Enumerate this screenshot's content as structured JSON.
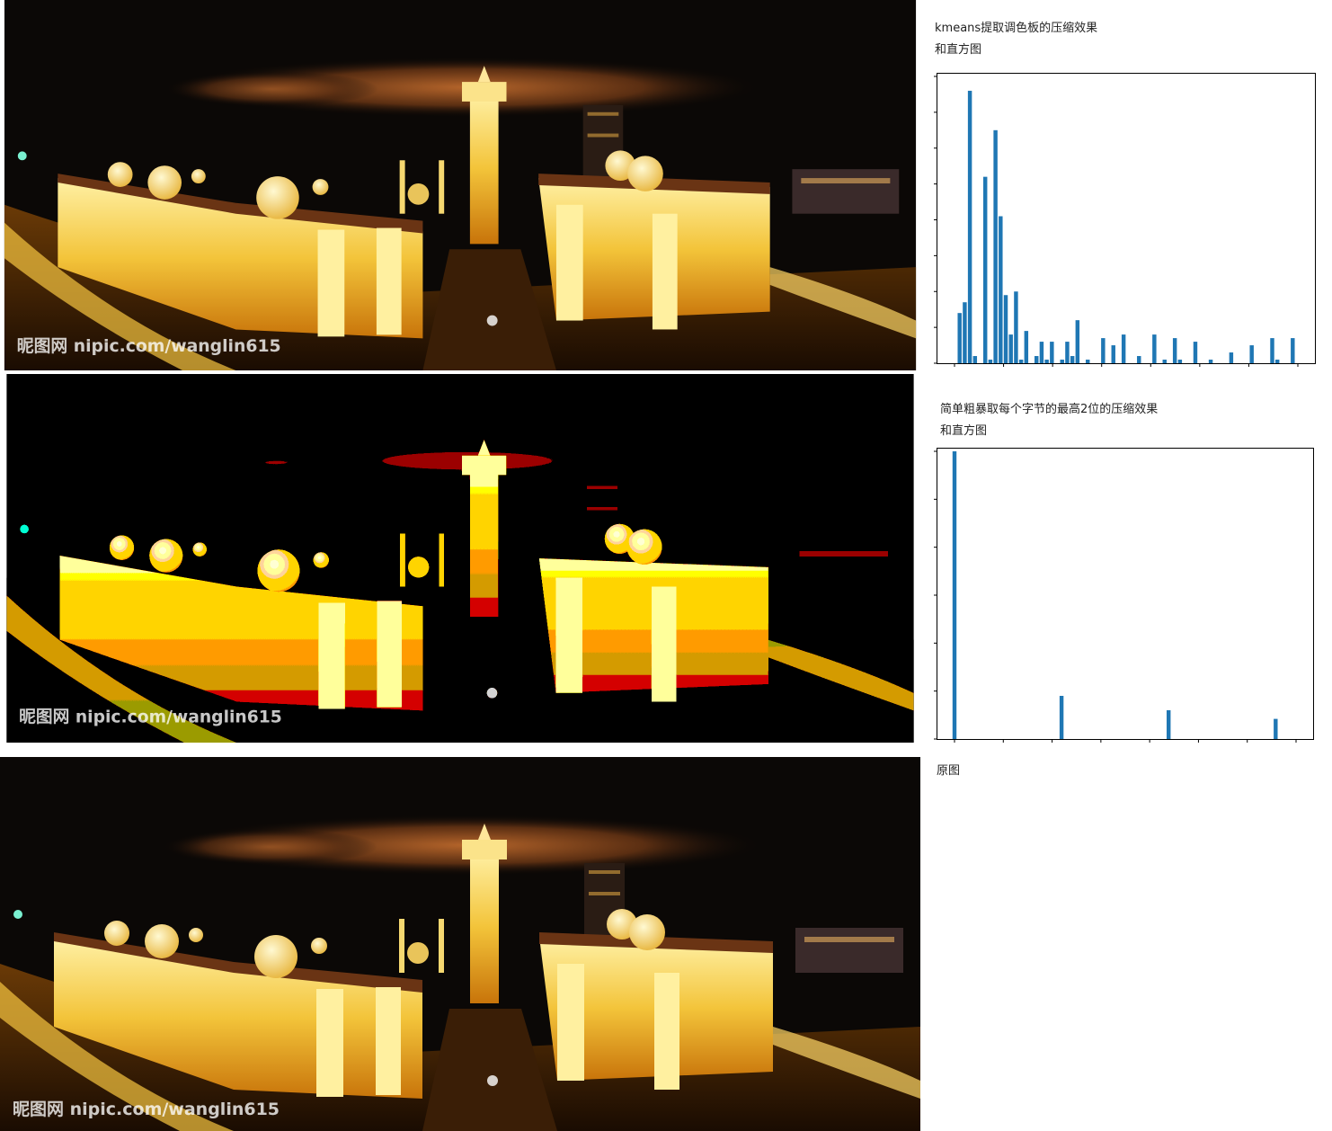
{
  "panels": {
    "kmeans": {
      "caption": "kmeans提取调色板的压缩效果\n和直方图",
      "watermark": "昵图网 nipic.com/wanglin615"
    },
    "crude": {
      "caption": "简单粗暴取每个字节的最高2位的压缩效果\n和直方图",
      "watermark": "昵图网 nipic.com/wanglin615"
    },
    "original": {
      "caption": "原图",
      "watermark": "昵图网 nipic.com/wanglin615"
    }
  },
  "palette": {
    "sky": "#0a0706",
    "cloud": "#6a3a14",
    "building_light": "#f6d56a",
    "building_glow": "#ffb000",
    "bar_color": "#1f77b4"
  },
  "chart_data": [
    {
      "type": "bar",
      "title": "",
      "xlabel": "",
      "ylabel": "",
      "xlim": [
        0,
        64
      ],
      "ylim": [
        0,
        80
      ],
      "tick_labels_shown": false,
      "x": [
        1,
        2,
        3,
        4,
        6,
        7,
        8,
        9,
        10,
        11,
        12,
        13,
        14,
        16,
        17,
        18,
        19,
        21,
        22,
        23,
        24,
        26,
        29,
        31,
        33,
        36,
        39,
        41,
        43,
        44,
        47,
        50,
        54,
        58,
        62,
        63,
        66
      ],
      "values": [
        14,
        17,
        76,
        2,
        52,
        1,
        65,
        41,
        19,
        8,
        20,
        1,
        9,
        2,
        6,
        1,
        6,
        1,
        6,
        2,
        12,
        1,
        7,
        5,
        8,
        2,
        8,
        1,
        7,
        1,
        6,
        1,
        3,
        5,
        7,
        1,
        7
      ]
    },
    {
      "type": "bar",
      "title": "",
      "xlabel": "",
      "ylabel": "",
      "xlim": [
        0,
        64
      ],
      "ylim": [
        0,
        100
      ],
      "tick_labels_shown": false,
      "x": [
        0,
        21,
        42,
        63
      ],
      "values": [
        100,
        15,
        10,
        7
      ]
    }
  ]
}
